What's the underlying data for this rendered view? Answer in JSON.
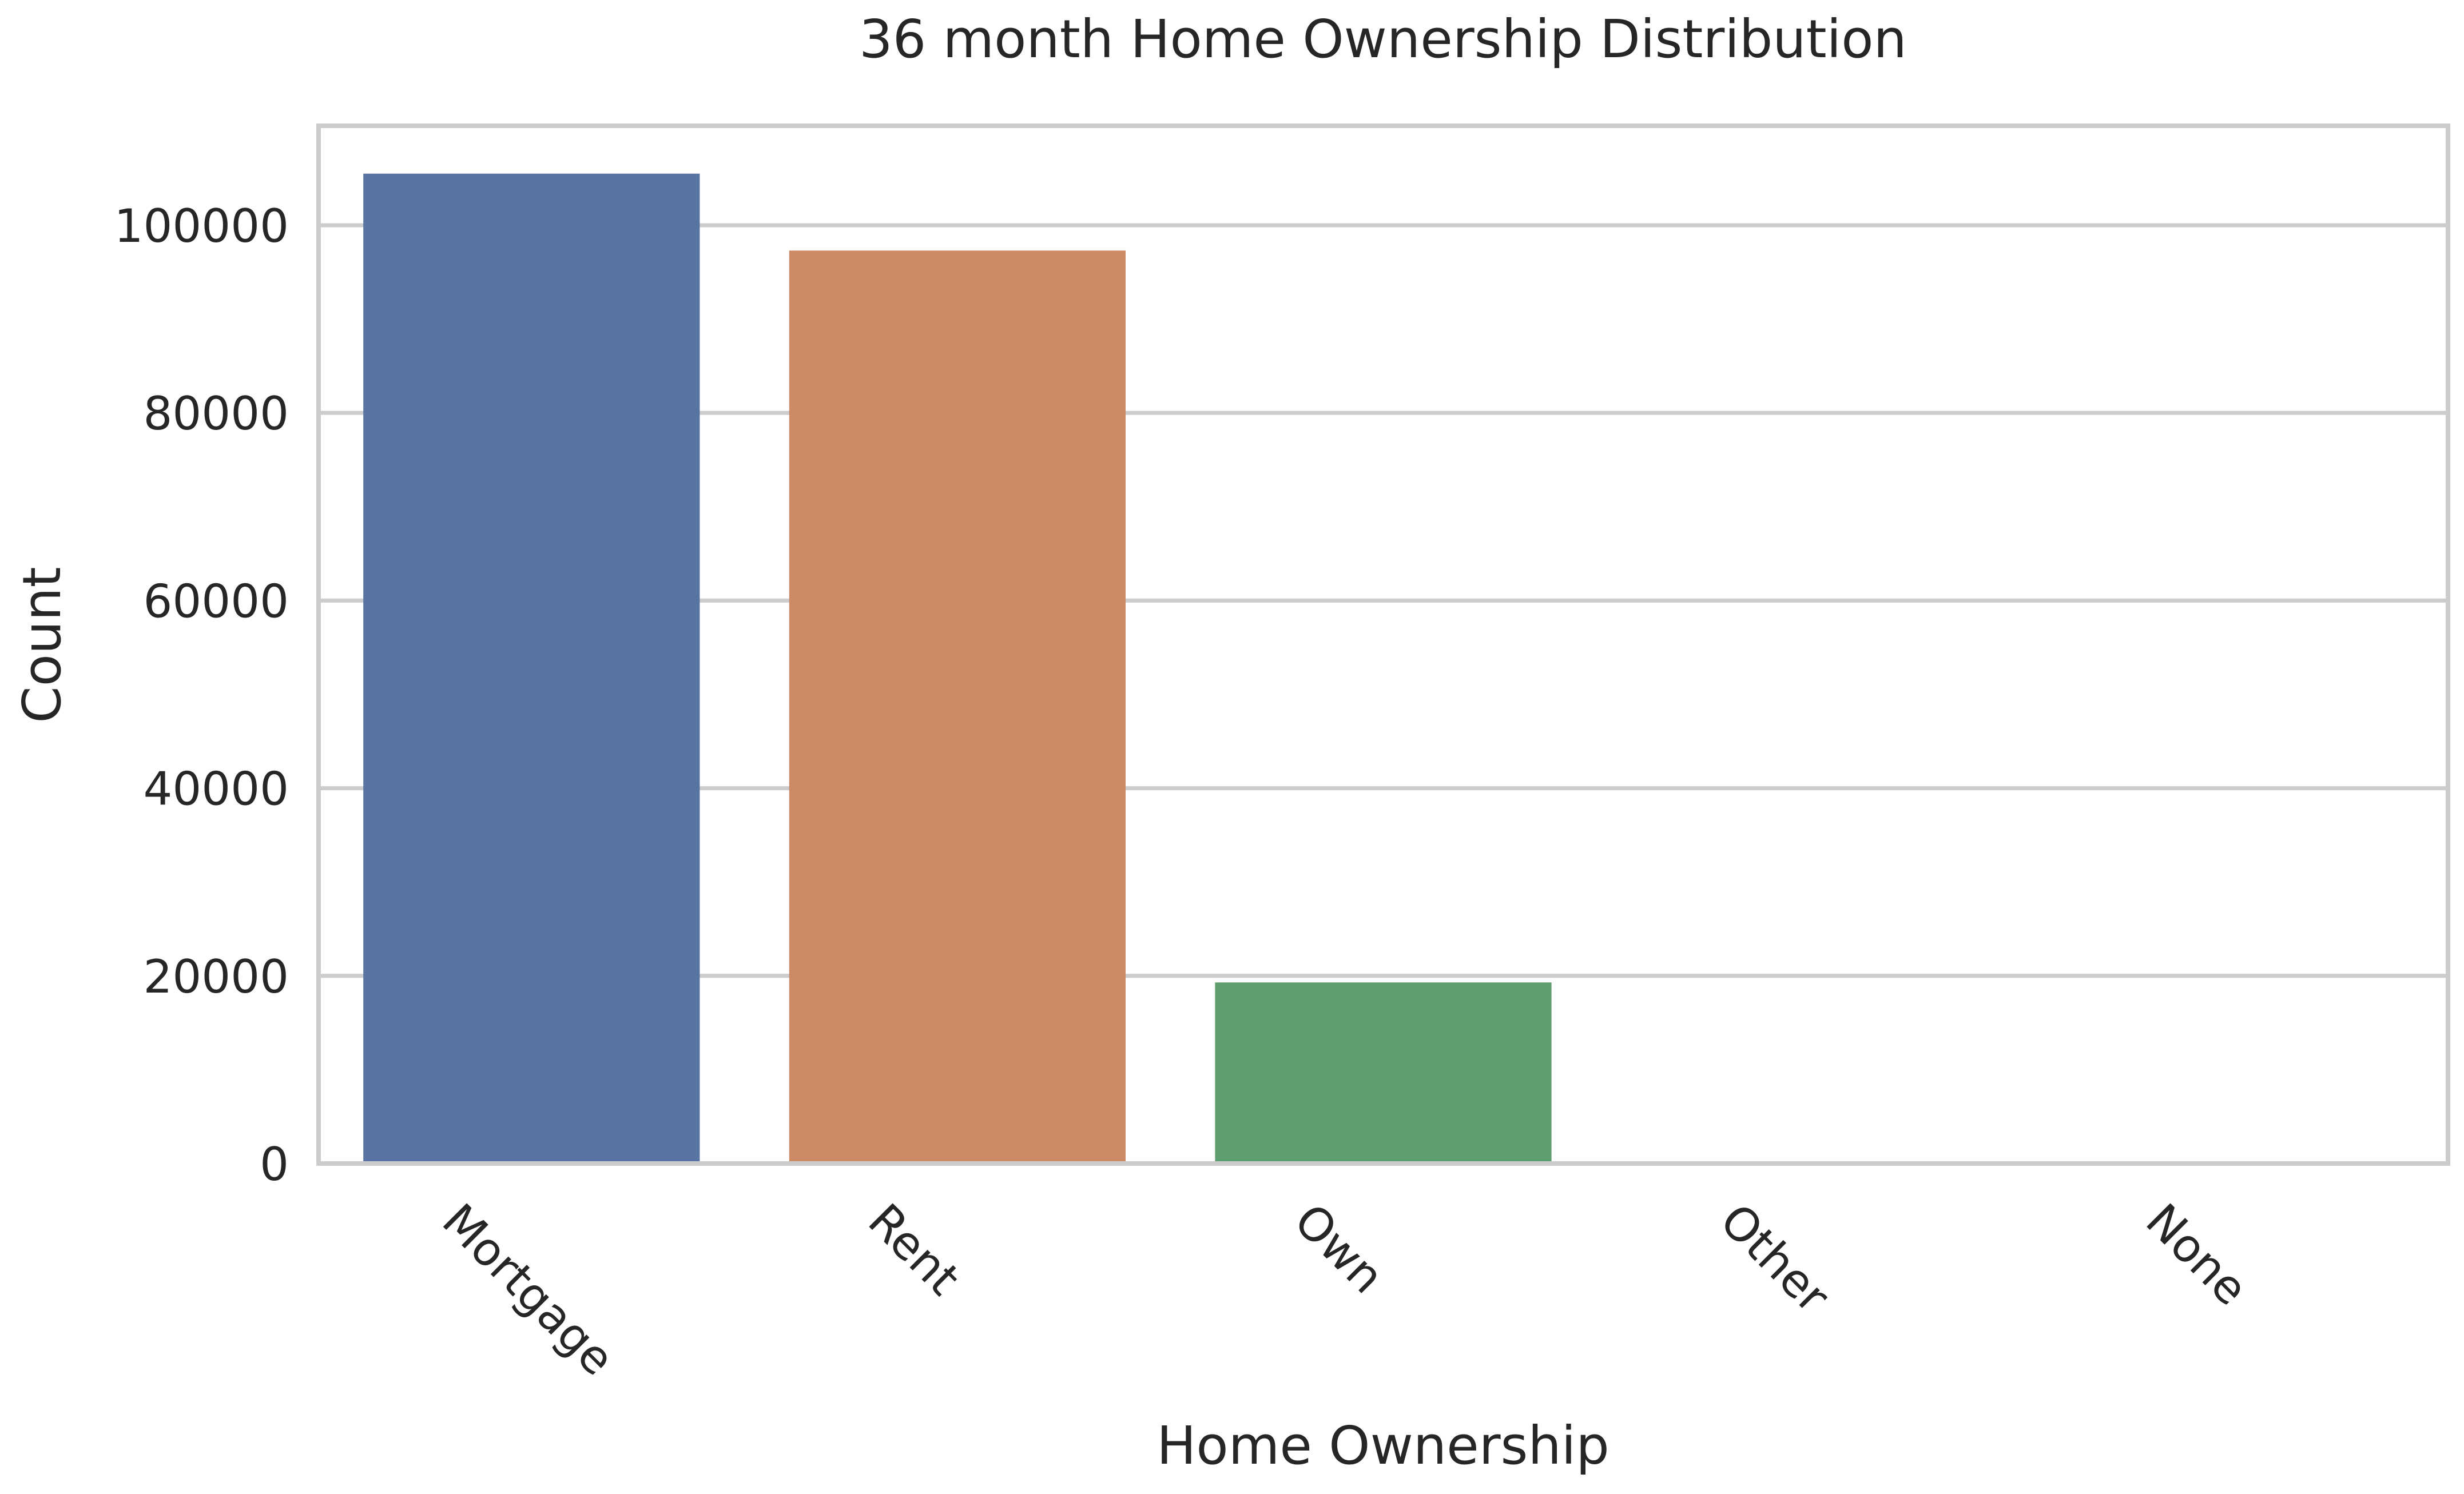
{
  "chart_data": {
    "type": "bar",
    "title": "36 month Home Ownership Distribution",
    "xlabel": "Home Ownership",
    "ylabel": "Count",
    "categories": [
      "Mortgage",
      "Rent",
      "Own",
      "Other",
      "None"
    ],
    "values": [
      105500,
      97300,
      19300,
      60,
      20
    ],
    "colors": [
      "#5874a2",
      "#cc8963",
      "#5f9e6e",
      "#b55d60",
      "#8172b2"
    ],
    "ylim": [
      0,
      110600
    ],
    "yticks": [
      0,
      20000,
      40000,
      60000,
      80000,
      100000
    ],
    "ytick_labels": [
      "0",
      "20000",
      "40000",
      "60000",
      "80000",
      "100000"
    ],
    "grid": "horizontal",
    "xtick_rotation": "45° clockwise"
  }
}
